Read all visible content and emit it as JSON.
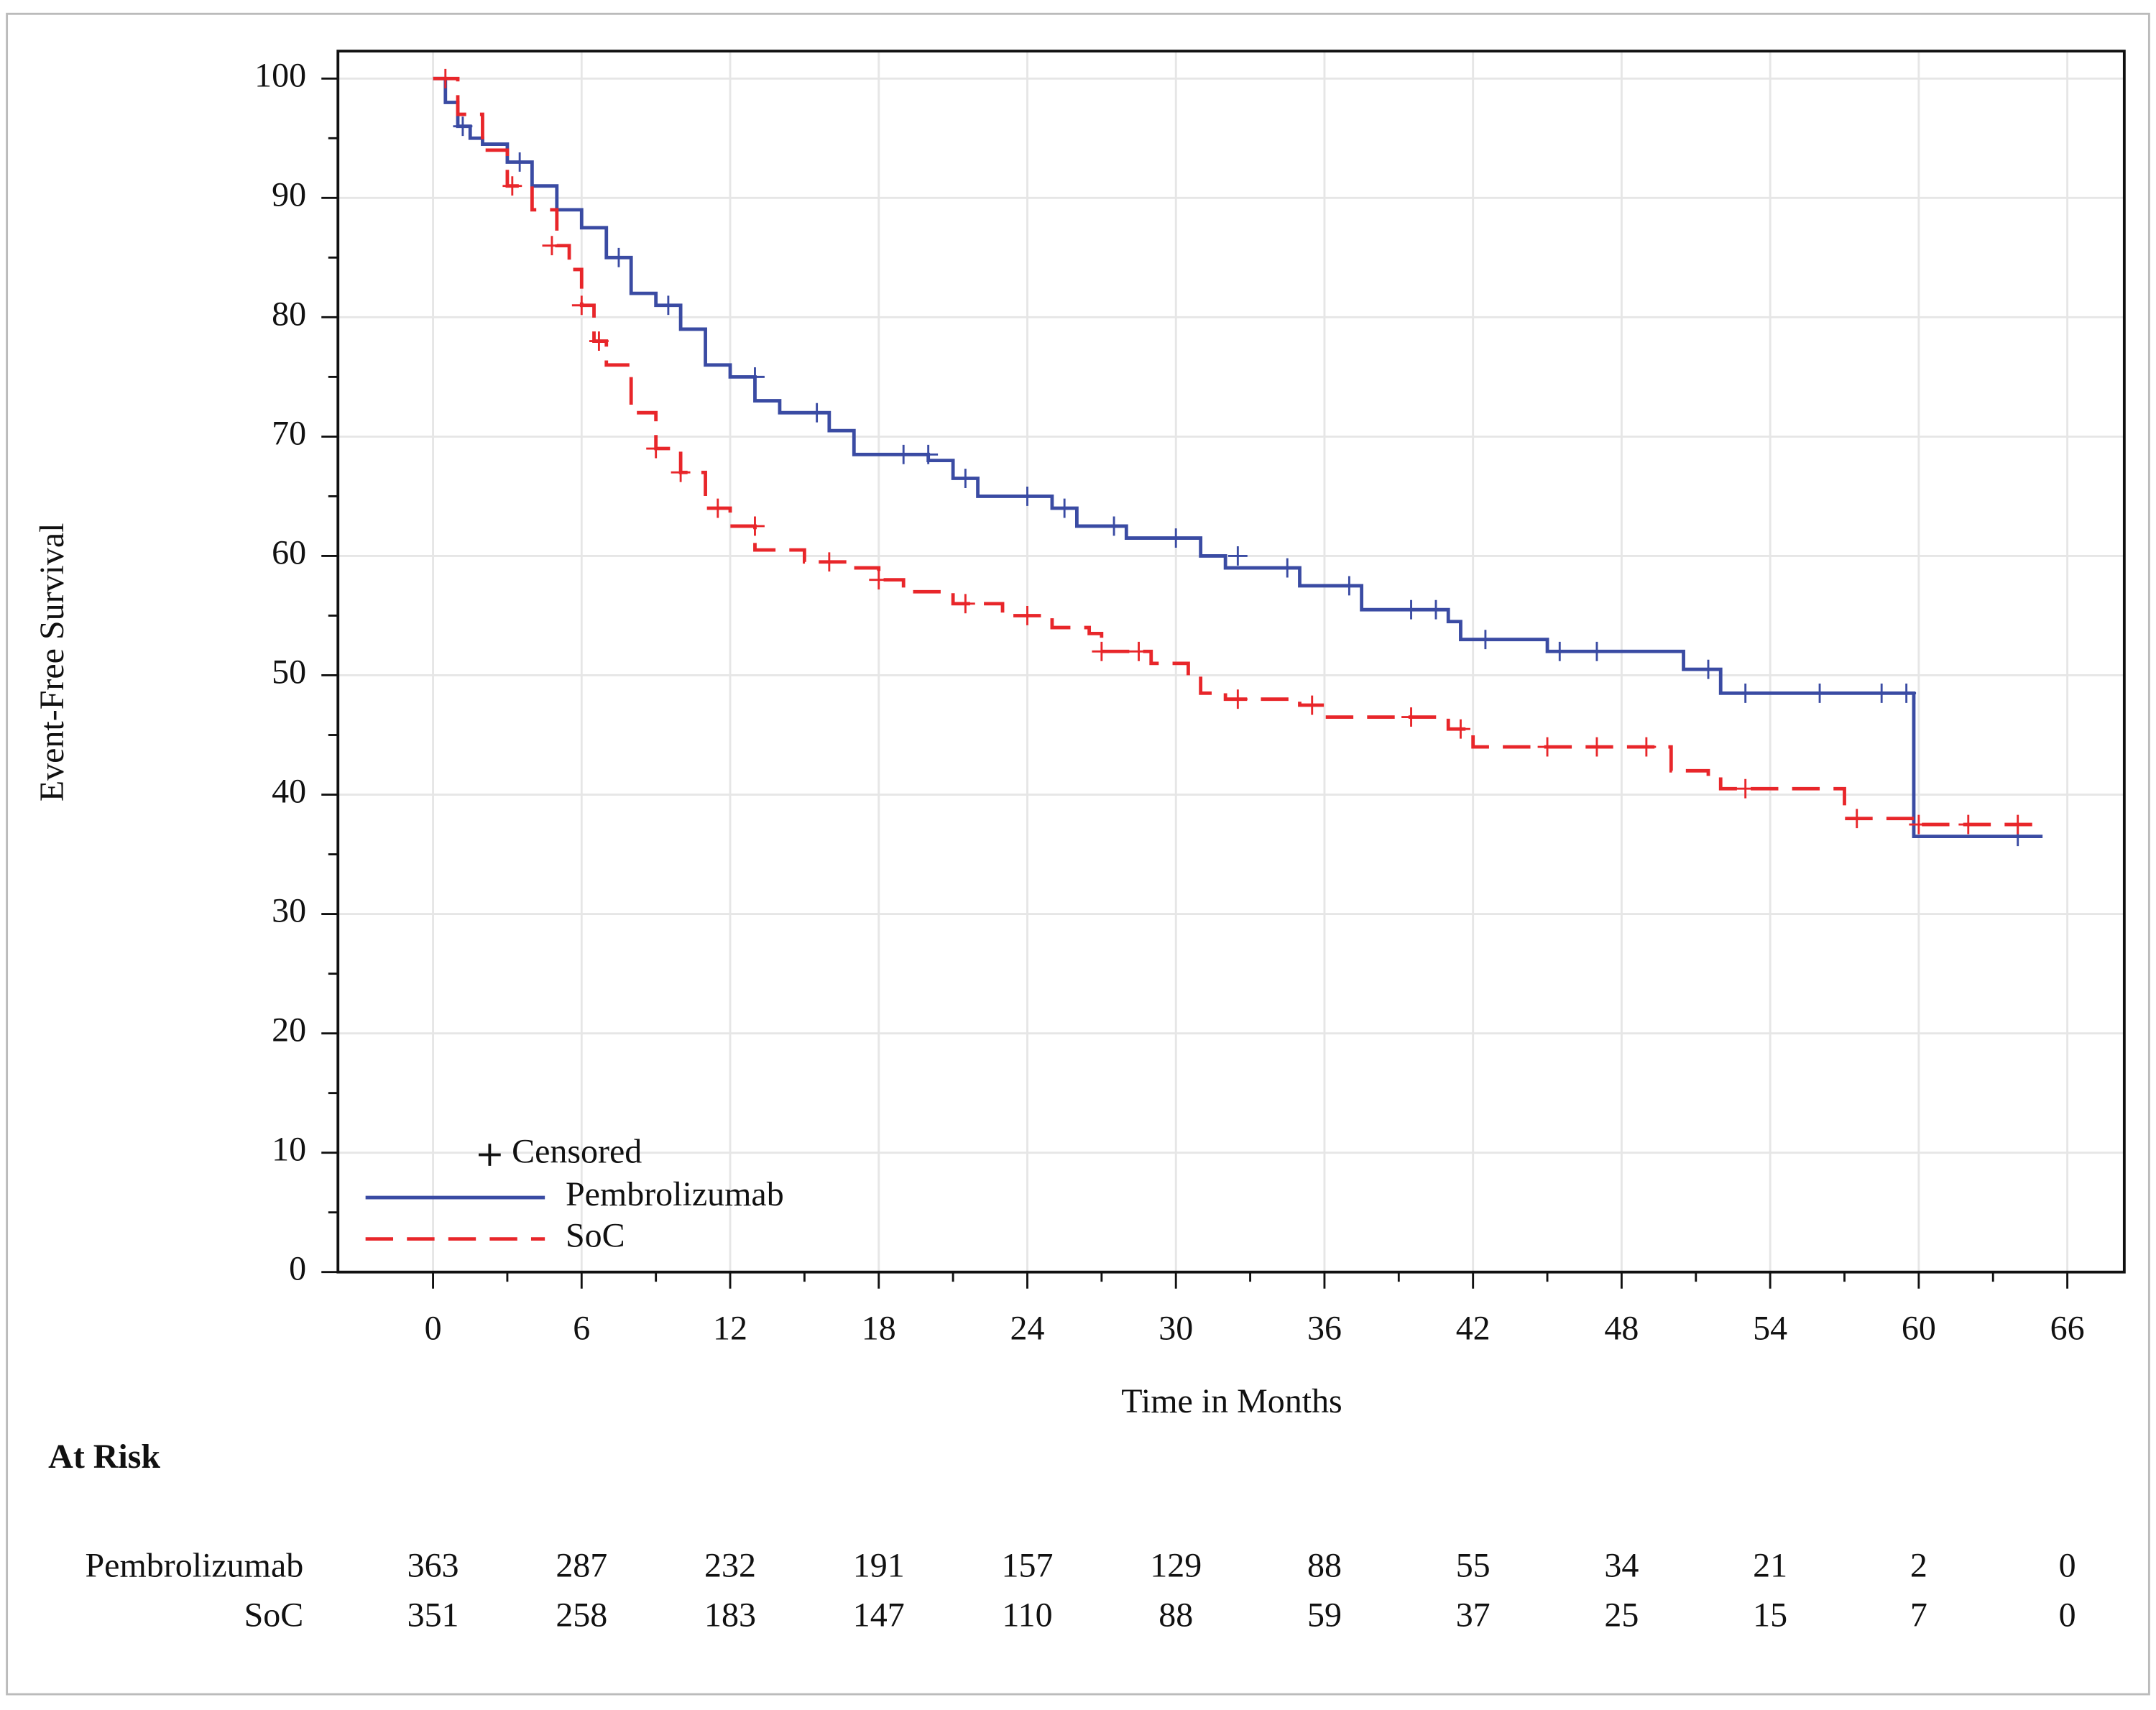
{
  "chart_data": {
    "type": "km",
    "x_label": "Time in Months",
    "y_label": "Event-Free Survival",
    "xlim": [
      -3.84,
      68.3
    ],
    "ylim": [
      0,
      102.3
    ],
    "xticks": [
      0,
      6,
      12,
      18,
      24,
      30,
      36,
      42,
      48,
      54,
      60,
      66
    ],
    "xminorticks": [
      3,
      9,
      15,
      21,
      27,
      33,
      39,
      45,
      51,
      57,
      63
    ],
    "yticks": [
      0,
      10,
      20,
      30,
      40,
      50,
      60,
      70,
      80,
      90,
      100
    ],
    "yminorticks": [
      5,
      15,
      25,
      35,
      45,
      55,
      65,
      75,
      85,
      95
    ],
    "grid": true,
    "censored_label": "Censored",
    "series": [
      {
        "name": "Pembrolizumab",
        "color": "#3a4ba3",
        "dash": false,
        "x": [
          0,
          0.5,
          1,
          1.5,
          2,
          3,
          4,
          5,
          6,
          7,
          8,
          9,
          10,
          11,
          12,
          13,
          14,
          16,
          17,
          20,
          21,
          22,
          25,
          26,
          28,
          31,
          32,
          35,
          37.5,
          41,
          41.5,
          45,
          50.5,
          52,
          59.8,
          65
        ],
        "values": [
          100,
          98,
          96,
          95,
          94.5,
          93,
          91,
          89,
          87.5,
          85,
          82,
          81,
          79,
          76,
          75,
          73,
          72,
          70.5,
          68.5,
          68,
          66.5,
          65,
          64,
          62.5,
          61.5,
          60,
          59,
          57.5,
          55.5,
          54.5,
          53,
          52,
          50.5,
          48.5,
          36.5,
          36.5
        ],
        "censored_x": [
          1.2,
          3.5,
          7.5,
          9.5,
          13,
          15.5,
          19,
          20,
          21.5,
          24,
          25.5,
          27.5,
          30,
          32.5,
          34.5,
          37,
          39.5,
          40.5,
          42.5,
          45.5,
          47,
          51.5,
          53,
          56,
          58.5,
          59.5,
          64
        ],
        "censored_y": [
          96,
          93,
          85,
          81,
          75,
          72,
          68.5,
          68.5,
          66.5,
          65,
          64,
          62.5,
          61.5,
          60,
          59,
          57.5,
          55.5,
          55.5,
          53,
          52,
          52,
          50.5,
          48.5,
          48.5,
          48.5,
          48.5,
          36.5
        ]
      },
      {
        "name": "SoC",
        "color": "#e8262a",
        "dash": true,
        "x": [
          0,
          1,
          2,
          3,
          4,
          5,
          5.5,
          6,
          6.5,
          7,
          8,
          9,
          10,
          11,
          12,
          13,
          15,
          17,
          18,
          19,
          21,
          23,
          25,
          26.5,
          27,
          29,
          30.5,
          31,
          32,
          35,
          36,
          38,
          41,
          42,
          48,
          50,
          51.5,
          52,
          57,
          60,
          65
        ],
        "values": [
          100,
          97,
          94,
          91,
          89,
          86,
          84,
          81,
          78,
          76,
          72,
          69,
          67,
          64,
          62.5,
          60.5,
          59.5,
          59,
          58,
          57,
          56,
          55,
          54,
          53.5,
          52,
          51,
          50,
          48.5,
          48,
          47.5,
          46.5,
          46.5,
          45.5,
          44,
          44,
          42,
          41.5,
          40.5,
          38,
          37.5,
          37.5
        ],
        "censored_x": [
          0.5,
          3.2,
          4.8,
          6,
          6.7,
          9,
          10,
          11.5,
          13,
          16,
          18,
          21.5,
          24,
          27,
          28.5,
          32.5,
          35.5,
          39.5,
          41.5,
          45,
          47,
          49,
          53,
          57.5,
          60,
          62,
          64
        ],
        "censored_y": [
          100,
          91,
          86,
          81,
          78,
          69,
          67,
          64,
          62.5,
          59.5,
          58,
          56,
          55,
          52,
          52,
          48,
          47.5,
          46.5,
          45.5,
          44,
          44,
          44,
          40.5,
          38,
          37.5,
          37.5,
          37.5
        ]
      }
    ],
    "at_risk": {
      "title": "At Risk",
      "times": [
        0,
        6,
        12,
        18,
        24,
        30,
        36,
        42,
        48,
        54,
        60,
        66
      ],
      "rows": [
        {
          "name": "Pembrolizumab",
          "values": [
            363,
            287,
            232,
            191,
            157,
            129,
            88,
            55,
            34,
            21,
            2,
            0
          ]
        },
        {
          "name": "SoC",
          "values": [
            351,
            258,
            183,
            147,
            110,
            88,
            59,
            37,
            25,
            15,
            7,
            0
          ]
        }
      ]
    }
  }
}
